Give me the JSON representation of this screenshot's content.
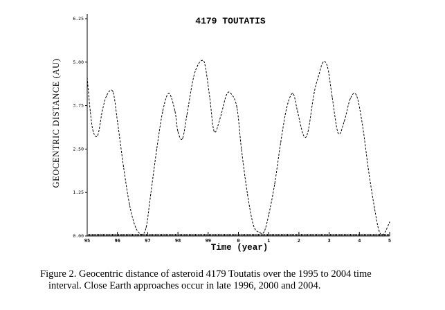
{
  "chart_data": {
    "type": "line",
    "title": "4179 Toutatis",
    "xlabel": "Time (year)",
    "ylabel": "GEOCENTRIC DISTANCE (AU)",
    "xlim": [
      1995,
      2005
    ],
    "ylim": [
      0,
      6.25
    ],
    "x_ticks": [
      {
        "value": 1995,
        "label": "95"
      },
      {
        "value": 1996,
        "label": "96"
      },
      {
        "value": 1997,
        "label": "97"
      },
      {
        "value": 1998,
        "label": "98"
      },
      {
        "value": 1999,
        "label": "99"
      },
      {
        "value": 2000,
        "label": "0"
      },
      {
        "value": 2001,
        "label": "1"
      },
      {
        "value": 2002,
        "label": "2"
      },
      {
        "value": 2003,
        "label": "3"
      },
      {
        "value": 2004,
        "label": "4"
      },
      {
        "value": 2005,
        "label": "5"
      }
    ],
    "y_ticks": [
      {
        "value": 0,
        "label": "0.00"
      },
      {
        "value": 1.25,
        "label": "1.25"
      },
      {
        "value": 2.5,
        "label": "2.50"
      },
      {
        "value": 3.75,
        "label": "3.75"
      },
      {
        "value": 5.0,
        "label": "5.00"
      },
      {
        "value": 6.25,
        "label": "6.25"
      }
    ],
    "grid": false,
    "line_style": "dashed",
    "series": [
      {
        "x": [
          1995.0,
          1995.1,
          1995.2,
          1995.35,
          1995.5,
          1995.65,
          1995.85,
          1996.0,
          1996.2,
          1996.4,
          1996.6,
          1996.8,
          1996.95,
          1997.1,
          1997.3,
          1997.5,
          1997.7,
          1997.9,
          1998.0,
          1998.15,
          1998.3,
          1998.5,
          1998.65,
          1998.8,
          1998.9,
          1999.05,
          1999.2,
          1999.4,
          1999.6,
          1999.75,
          1999.95,
          2000.1,
          2000.3,
          2000.5,
          2000.7,
          2000.85,
          2001.0,
          2001.2,
          2001.4,
          2001.6,
          2001.8,
          2001.95,
          2002.15,
          2002.3,
          2002.5,
          2002.65,
          2002.8,
          2002.95,
          2003.1,
          2003.3,
          2003.5,
          2003.7,
          2003.9,
          2004.1,
          2004.3,
          2004.5,
          2004.65,
          2004.8,
          2005.0
        ],
        "y": [
          4.55,
          3.6,
          3.0,
          2.9,
          3.6,
          4.05,
          4.15,
          3.3,
          2.0,
          0.9,
          0.25,
          0.05,
          0.25,
          1.2,
          2.5,
          3.6,
          4.1,
          3.6,
          3.0,
          2.8,
          3.5,
          4.5,
          4.9,
          5.05,
          4.9,
          4.0,
          3.0,
          3.4,
          4.05,
          4.1,
          3.7,
          2.5,
          1.2,
          0.3,
          0.1,
          0.12,
          0.6,
          1.5,
          2.7,
          3.7,
          4.1,
          3.6,
          2.9,
          3.0,
          4.1,
          4.6,
          5.0,
          4.85,
          4.0,
          2.95,
          3.3,
          3.95,
          4.05,
          3.2,
          1.9,
          0.8,
          0.15,
          0.05,
          0.4
        ]
      }
    ]
  },
  "caption": {
    "line1": "Figure 2.    Geocentric distance of asteroid 4179 Toutatis over the 1995 to 2004 time",
    "line2": "interval.  Close Earth approaches occur in late 1996, 2000 and 2004."
  }
}
